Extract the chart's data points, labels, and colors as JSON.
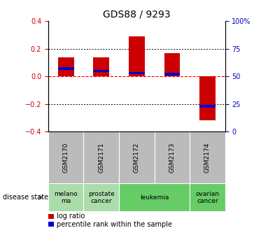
{
  "title": "GDS88 / 9293",
  "samples": [
    "GSM2170",
    "GSM2171",
    "GSM2172",
    "GSM2173",
    "GSM2174"
  ],
  "log_ratios": [
    0.14,
    0.14,
    0.29,
    0.17,
    -0.32
  ],
  "percentile_ranks": [
    57,
    55,
    53,
    52,
    23
  ],
  "disease_states": [
    {
      "label": "melano\nma",
      "samples": [
        "GSM2170"
      ],
      "color": "#aaddaa"
    },
    {
      "label": "prostate\ncancer",
      "samples": [
        "GSM2171"
      ],
      "color": "#aaddaa"
    },
    {
      "label": "leukemia",
      "samples": [
        "GSM2172",
        "GSM2173"
      ],
      "color": "#66cc66"
    },
    {
      "label": "ovarian\ncancer",
      "samples": [
        "GSM2174"
      ],
      "color": "#66cc66"
    }
  ],
  "ylim": [
    -0.4,
    0.4
  ],
  "yticks_left": [
    -0.4,
    -0.2,
    0.0,
    0.2,
    0.4
  ],
  "yticks_right_vals": [
    -0.4,
    -0.2,
    0.0,
    0.2,
    0.4
  ],
  "yticks_right_labels": [
    "0",
    "25",
    "50",
    "75",
    "100%"
  ],
  "bar_width": 0.45,
  "bar_color": "#cc0000",
  "percentile_color": "#0000cc",
  "bg_color": "#ffffff",
  "left_tick_color": "#cc0000",
  "right_tick_color": "#0000cc",
  "zero_line_color": "#ff0000",
  "grid_color": "#000000",
  "sample_bg_color": "#bbbbbb",
  "disease_state_label": "disease state"
}
